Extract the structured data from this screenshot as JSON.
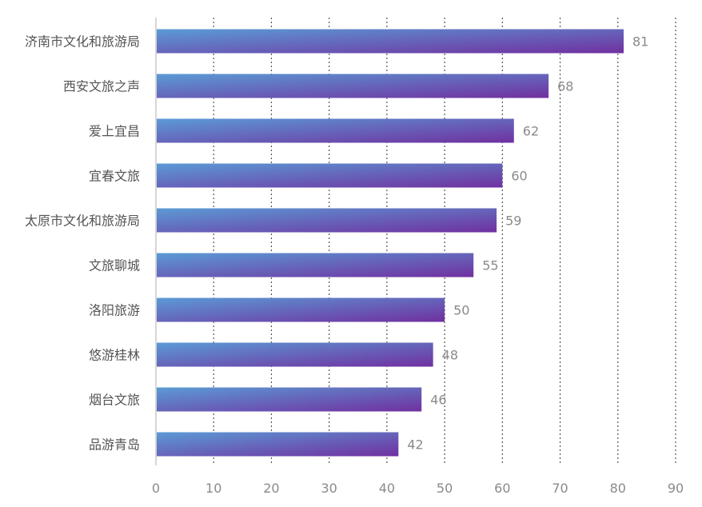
{
  "chart_data": {
    "type": "bar",
    "orientation": "horizontal",
    "categories": [
      "济南市文化和旅游局",
      "西安文旅之声",
      "爱上宜昌",
      "宜春文旅",
      "太原市文化和旅游局",
      "文旅聊城",
      "洛阳旅游",
      "悠游桂林",
      "烟台文旅",
      "品游青岛"
    ],
    "values": [
      81,
      68,
      62,
      60,
      59,
      55,
      50,
      48,
      46,
      42
    ],
    "xlim": [
      0,
      90
    ],
    "xticks": [
      0,
      10,
      20,
      30,
      40,
      50,
      60,
      70,
      80,
      90
    ],
    "grid": "vertical dotted",
    "data_labels": true,
    "bar_gradient": [
      "#5b9bd5",
      "#7030a0"
    ],
    "text_color": "#555555",
    "value_color": "#8a8a8a"
  }
}
